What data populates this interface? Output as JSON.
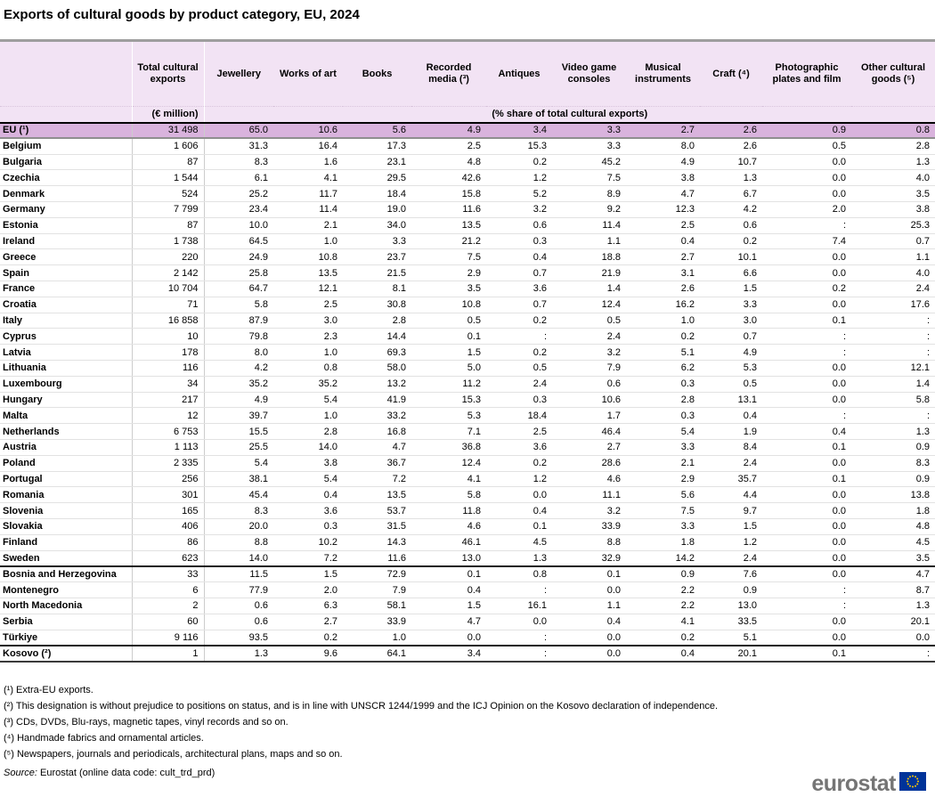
{
  "chart_data": {
    "type": "table",
    "title": "Exports of cultural goods by product category, EU, 2024",
    "columns": [
      "Total cultural exports",
      "Jewellery",
      "Works of art",
      "Books",
      "Recorded media (³)",
      "Antiques",
      "Video game consoles",
      "Musical instruments",
      "Craft (⁴)",
      "Photographic plates and film",
      "Other cultural goods (⁵)"
    ],
    "units": {
      "left": "(€ million)",
      "right": "(% share of total cultural exports)"
    },
    "missing_value_symbol": ":",
    "highlight_color": "#d9b3dd",
    "header_color": "#f2e3f4",
    "rows": [
      {
        "name": "EU (¹)",
        "highlight": true,
        "values": [
          "31 498",
          "65.0",
          "10.6",
          "5.6",
          "4.9",
          "3.4",
          "3.3",
          "2.7",
          "2.6",
          "0.9",
          "0.8"
        ]
      },
      {
        "name": "Belgium",
        "values": [
          "1 606",
          "31.3",
          "16.4",
          "17.3",
          "2.5",
          "15.3",
          "3.3",
          "8.0",
          "2.6",
          "0.5",
          "2.8"
        ]
      },
      {
        "name": "Bulgaria",
        "values": [
          "87",
          "8.3",
          "1.6",
          "23.1",
          "4.8",
          "0.2",
          "45.2",
          "4.9",
          "10.7",
          "0.0",
          "1.3"
        ]
      },
      {
        "name": "Czechia",
        "values": [
          "1 544",
          "6.1",
          "4.1",
          "29.5",
          "42.6",
          "1.2",
          "7.5",
          "3.8",
          "1.3",
          "0.0",
          "4.0"
        ]
      },
      {
        "name": "Denmark",
        "values": [
          "524",
          "25.2",
          "11.7",
          "18.4",
          "15.8",
          "5.2",
          "8.9",
          "4.7",
          "6.7",
          "0.0",
          "3.5"
        ]
      },
      {
        "name": "Germany",
        "values": [
          "7 799",
          "23.4",
          "11.4",
          "19.0",
          "11.6",
          "3.2",
          "9.2",
          "12.3",
          "4.2",
          "2.0",
          "3.8"
        ]
      },
      {
        "name": "Estonia",
        "values": [
          "87",
          "10.0",
          "2.1",
          "34.0",
          "13.5",
          "0.6",
          "11.4",
          "2.5",
          "0.6",
          ":",
          "25.3"
        ]
      },
      {
        "name": "Ireland",
        "values": [
          "1 738",
          "64.5",
          "1.0",
          "3.3",
          "21.2",
          "0.3",
          "1.1",
          "0.4",
          "0.2",
          "7.4",
          "0.7"
        ]
      },
      {
        "name": "Greece",
        "values": [
          "220",
          "24.9",
          "10.8",
          "23.7",
          "7.5",
          "0.4",
          "18.8",
          "2.7",
          "10.1",
          "0.0",
          "1.1"
        ]
      },
      {
        "name": "Spain",
        "values": [
          "2 142",
          "25.8",
          "13.5",
          "21.5",
          "2.9",
          "0.7",
          "21.9",
          "3.1",
          "6.6",
          "0.0",
          "4.0"
        ]
      },
      {
        "name": "France",
        "values": [
          "10 704",
          "64.7",
          "12.1",
          "8.1",
          "3.5",
          "3.6",
          "1.4",
          "2.6",
          "1.5",
          "0.2",
          "2.4"
        ]
      },
      {
        "name": "Croatia",
        "values": [
          "71",
          "5.8",
          "2.5",
          "30.8",
          "10.8",
          "0.7",
          "12.4",
          "16.2",
          "3.3",
          "0.0",
          "17.6"
        ]
      },
      {
        "name": "Italy",
        "values": [
          "16 858",
          "87.9",
          "3.0",
          "2.8",
          "0.5",
          "0.2",
          "0.5",
          "1.0",
          "3.0",
          "0.1",
          ":"
        ]
      },
      {
        "name": "Cyprus",
        "values": [
          "10",
          "79.8",
          "2.3",
          "14.4",
          "0.1",
          ":",
          "2.4",
          "0.2",
          "0.7",
          ":",
          ":"
        ]
      },
      {
        "name": "Latvia",
        "values": [
          "178",
          "8.0",
          "1.0",
          "69.3",
          "1.5",
          "0.2",
          "3.2",
          "5.1",
          "4.9",
          ":",
          ":"
        ]
      },
      {
        "name": "Lithuania",
        "values": [
          "116",
          "4.2",
          "0.8",
          "58.0",
          "5.0",
          "0.5",
          "7.9",
          "6.2",
          "5.3",
          "0.0",
          "12.1"
        ]
      },
      {
        "name": "Luxembourg",
        "values": [
          "34",
          "35.2",
          "35.2",
          "13.2",
          "11.2",
          "2.4",
          "0.6",
          "0.3",
          "0.5",
          "0.0",
          "1.4"
        ]
      },
      {
        "name": "Hungary",
        "values": [
          "217",
          "4.9",
          "5.4",
          "41.9",
          "15.3",
          "0.3",
          "10.6",
          "2.8",
          "13.1",
          "0.0",
          "5.8"
        ]
      },
      {
        "name": "Malta",
        "values": [
          "12",
          "39.7",
          "1.0",
          "33.2",
          "5.3",
          "18.4",
          "1.7",
          "0.3",
          "0.4",
          ":",
          ":"
        ]
      },
      {
        "name": "Netherlands",
        "values": [
          "6 753",
          "15.5",
          "2.8",
          "16.8",
          "7.1",
          "2.5",
          "46.4",
          "5.4",
          "1.9",
          "0.4",
          "1.3"
        ]
      },
      {
        "name": "Austria",
        "values": [
          "1 113",
          "25.5",
          "14.0",
          "4.7",
          "36.8",
          "3.6",
          "2.7",
          "3.3",
          "8.4",
          "0.1",
          "0.9"
        ]
      },
      {
        "name": "Poland",
        "values": [
          "2 335",
          "5.4",
          "3.8",
          "36.7",
          "12.4",
          "0.2",
          "28.6",
          "2.1",
          "2.4",
          "0.0",
          "8.3"
        ]
      },
      {
        "name": "Portugal",
        "values": [
          "256",
          "38.1",
          "5.4",
          "7.2",
          "4.1",
          "1.2",
          "4.6",
          "2.9",
          "35.7",
          "0.1",
          "0.9"
        ]
      },
      {
        "name": "Romania",
        "values": [
          "301",
          "45.4",
          "0.4",
          "13.5",
          "5.8",
          "0.0",
          "11.1",
          "5.6",
          "4.4",
          "0.0",
          "13.8"
        ]
      },
      {
        "name": "Slovenia",
        "values": [
          "165",
          "8.3",
          "3.6",
          "53.7",
          "11.8",
          "0.4",
          "3.2",
          "7.5",
          "9.7",
          "0.0",
          "1.8"
        ]
      },
      {
        "name": "Slovakia",
        "values": [
          "406",
          "20.0",
          "0.3",
          "31.5",
          "4.6",
          "0.1",
          "33.9",
          "3.3",
          "1.5",
          "0.0",
          "4.8"
        ]
      },
      {
        "name": "Finland",
        "values": [
          "86",
          "8.8",
          "10.2",
          "14.3",
          "46.1",
          "4.5",
          "8.8",
          "1.8",
          "1.2",
          "0.0",
          "4.5"
        ]
      },
      {
        "name": "Sweden",
        "values": [
          "623",
          "14.0",
          "7.2",
          "11.6",
          "13.0",
          "1.3",
          "32.9",
          "14.2",
          "2.4",
          "0.0",
          "3.5"
        ]
      },
      {
        "name": "Bosnia and Herzegovina",
        "sep_above": true,
        "values": [
          "33",
          "11.5",
          "1.5",
          "72.9",
          "0.1",
          "0.8",
          "0.1",
          "0.9",
          "7.6",
          "0.0",
          "4.7"
        ]
      },
      {
        "name": "Montenegro",
        "values": [
          "6",
          "77.9",
          "2.0",
          "7.9",
          "0.4",
          ":",
          "0.0",
          "2.2",
          "0.9",
          ":",
          "8.7"
        ]
      },
      {
        "name": "North Macedonia",
        "values": [
          "2",
          "0.6",
          "6.3",
          "58.1",
          "1.5",
          "16.1",
          "1.1",
          "2.2",
          "13.0",
          ":",
          "1.3"
        ]
      },
      {
        "name": "Serbia",
        "values": [
          "60",
          "0.6",
          "2.7",
          "33.9",
          "4.7",
          "0.0",
          "0.4",
          "4.1",
          "33.5",
          "0.0",
          "20.1"
        ]
      },
      {
        "name": "Türkiye",
        "values": [
          "9 116",
          "93.5",
          "0.2",
          "1.0",
          "0.0",
          ":",
          "0.0",
          "0.2",
          "5.1",
          "0.0",
          "0.0"
        ]
      },
      {
        "name": "Kosovo (²)",
        "sep_above": true,
        "values": [
          "1",
          "1.3",
          "9.6",
          "64.1",
          "3.4",
          ":",
          "0.0",
          "0.4",
          "20.1",
          "0.1",
          ":"
        ]
      }
    ]
  },
  "footnotes": [
    "(¹) Extra-EU exports.",
    "(²) This designation is without prejudice to positions on status, and is in line with UNSCR 1244/1999 and the ICJ Opinion on the Kosovo declaration of independence.",
    "(³) CDs, DVDs, Blu-rays, magnetic tapes, vinyl records and so on.",
    "(⁴) Handmade fabrics and ornamental articles.",
    "(⁵) Newspapers, journals and periodicals, architectural plans, maps and so on."
  ],
  "source": {
    "prefix": "Source:",
    "text": "Eurostat (online data code: cult_trd_prd)"
  },
  "logo": {
    "text": "eurostat",
    "flag_blue": "#003399",
    "star_yellow": "#ffcc00"
  }
}
